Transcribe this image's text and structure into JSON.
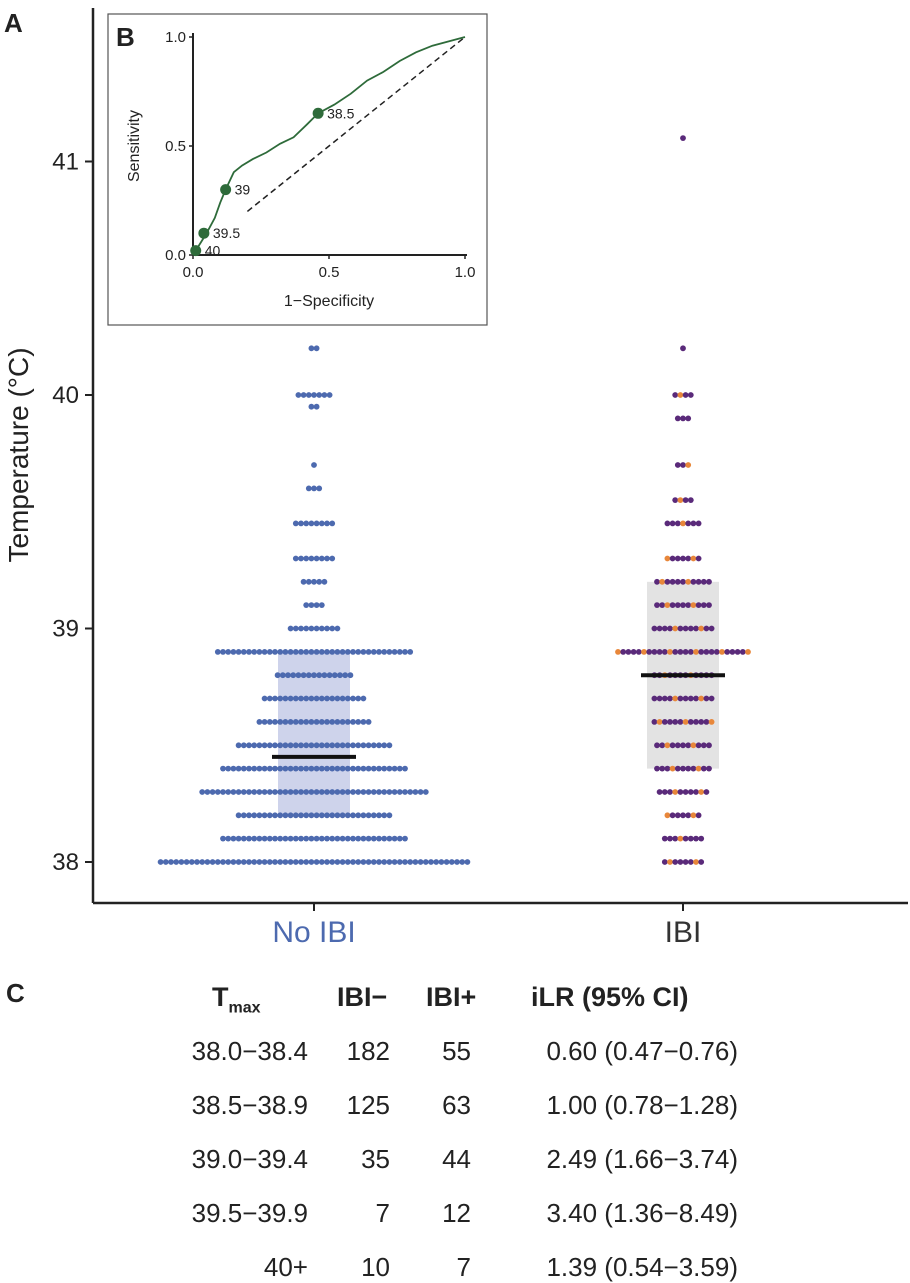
{
  "panels": {
    "a_letter": "A",
    "b_letter": "B",
    "c_letter": "C"
  },
  "colors": {
    "no_ibi": "#4d6aaf",
    "ibi": "#5a2a7a",
    "ibi_highlight": "#e8873a",
    "no_ibi_box": "#c5cbe8",
    "ibi_box": "#dedede",
    "median": "#111111",
    "roc": "#2e6b3a"
  },
  "chart_data": [
    {
      "type": "scatter",
      "subtype": "beeswarm",
      "ylabel": "Temperature (°C)",
      "xlabel": "",
      "ylim": [
        37.9,
        41.6
      ],
      "yticks": [
        "38",
        "39",
        "40",
        "41"
      ],
      "categories": [
        "No IBI",
        "IBI"
      ],
      "groups": [
        {
          "name": "No IBI",
          "color": "#4d6aaf",
          "median": 38.45,
          "iqr": [
            38.2,
            38.9
          ],
          "bins": [
            {
              "temp": 38.0,
              "n": 60
            },
            {
              "temp": 38.1,
              "n": 36
            },
            {
              "temp": 38.2,
              "n": 30
            },
            {
              "temp": 38.3,
              "n": 44
            },
            {
              "temp": 38.4,
              "n": 36
            },
            {
              "temp": 38.5,
              "n": 30
            },
            {
              "temp": 38.6,
              "n": 22
            },
            {
              "temp": 38.7,
              "n": 20
            },
            {
              "temp": 38.8,
              "n": 15
            },
            {
              "temp": 38.9,
              "n": 38
            },
            {
              "temp": 39.0,
              "n": 10
            },
            {
              "temp": 39.1,
              "n": 4
            },
            {
              "temp": 39.2,
              "n": 5
            },
            {
              "temp": 39.3,
              "n": 8
            },
            {
              "temp": 39.45,
              "n": 8
            },
            {
              "temp": 39.6,
              "n": 3
            },
            {
              "temp": 39.7,
              "n": 1
            },
            {
              "temp": 39.95,
              "n": 2
            },
            {
              "temp": 40.0,
              "n": 7
            },
            {
              "temp": 40.2,
              "n": 2
            }
          ]
        },
        {
          "name": "IBI",
          "color": "#5a2a7a",
          "highlight_color": "#e8873a",
          "median": 38.8,
          "iqr": [
            38.4,
            39.2
          ],
          "bins": [
            {
              "temp": 38.0,
              "n": 8
            },
            {
              "temp": 38.1,
              "n": 8
            },
            {
              "temp": 38.2,
              "n": 7
            },
            {
              "temp": 38.3,
              "n": 10
            },
            {
              "temp": 38.4,
              "n": 11
            },
            {
              "temp": 38.5,
              "n": 11
            },
            {
              "temp": 38.6,
              "n": 12
            },
            {
              "temp": 38.7,
              "n": 12
            },
            {
              "temp": 38.8,
              "n": 12
            },
            {
              "temp": 38.9,
              "n": 26
            },
            {
              "temp": 39.0,
              "n": 12
            },
            {
              "temp": 39.1,
              "n": 11
            },
            {
              "temp": 39.2,
              "n": 11
            },
            {
              "temp": 39.3,
              "n": 7
            },
            {
              "temp": 39.45,
              "n": 7
            },
            {
              "temp": 39.55,
              "n": 4
            },
            {
              "temp": 39.7,
              "n": 3
            },
            {
              "temp": 39.9,
              "n": 3
            },
            {
              "temp": 40.0,
              "n": 4
            },
            {
              "temp": 40.2,
              "n": 1
            },
            {
              "temp": 41.1,
              "n": 1
            }
          ]
        }
      ]
    },
    {
      "type": "line",
      "subtype": "roc",
      "xlabel": "1−Specificity",
      "ylabel": "Sensitivity",
      "xlim": [
        0,
        1
      ],
      "ylim": [
        0,
        1
      ],
      "xticks": [
        "0.0",
        "0.5",
        "1.0"
      ],
      "yticks": [
        "0.0",
        "0.5",
        "1.0"
      ],
      "x": [
        0.0,
        0.01,
        0.03,
        0.05,
        0.08,
        0.1,
        0.12,
        0.15,
        0.18,
        0.22,
        0.27,
        0.32,
        0.37,
        0.42,
        0.46,
        0.52,
        0.58,
        0.64,
        0.7,
        0.76,
        0.82,
        0.88,
        0.94,
        1.0
      ],
      "y": [
        0.0,
        0.02,
        0.06,
        0.1,
        0.17,
        0.24,
        0.3,
        0.38,
        0.41,
        0.44,
        0.47,
        0.51,
        0.54,
        0.6,
        0.65,
        0.69,
        0.74,
        0.8,
        0.84,
        0.89,
        0.93,
        0.96,
        0.98,
        1.0
      ],
      "reference_line": [
        [
          0.2,
          0.2
        ],
        [
          1.0,
          1.0
        ]
      ],
      "points": [
        {
          "label": "38.5",
          "x": 0.46,
          "y": 0.65
        },
        {
          "label": "39",
          "x": 0.12,
          "y": 0.3
        },
        {
          "label": "39.5",
          "x": 0.04,
          "y": 0.1
        },
        {
          "label": "40",
          "x": 0.01,
          "y": 0.02
        }
      ]
    },
    {
      "type": "table",
      "columns": [
        {
          "main": "T",
          "sub": "max"
        },
        {
          "main": "IBI−"
        },
        {
          "main": "IBI+"
        },
        {
          "main": "iLR (95% CI)"
        }
      ],
      "rows": [
        [
          "38.0−38.4",
          "182",
          "55",
          "0.60 (0.47−0.76)"
        ],
        [
          "38.5−38.9",
          "125",
          "63",
          "1.00 (0.78−1.28)"
        ],
        [
          "39.0−39.4",
          "35",
          "44",
          "2.49 (1.66−3.74)"
        ],
        [
          "39.5−39.9",
          "7",
          "12",
          "3.40 (1.36−8.49)"
        ],
        [
          "40+",
          "10",
          "7",
          "1.39 (0.54−3.59)"
        ]
      ]
    }
  ]
}
